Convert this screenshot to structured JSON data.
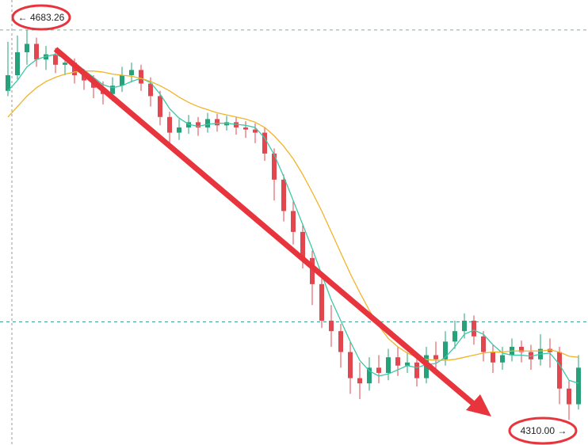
{
  "chart_data": {
    "type": "candlestick",
    "ylim": [
      4286,
      4712
    ],
    "open": [
      4625,
      4640,
      4662,
      4670,
      4655,
      4660,
      4650,
      4652,
      4640,
      4635,
      4628,
      4622,
      4630,
      4640,
      4645,
      4632,
      4620,
      4600,
      4585,
      4590,
      4595,
      4590,
      4598,
      4592,
      4595,
      4590,
      4588,
      4585,
      4565,
      4540,
      4510,
      4490,
      4465,
      4440,
      4405,
      4395,
      4375,
      4350,
      4345,
      4360,
      4355,
      4370,
      4362,
      4365,
      4350,
      4372,
      4368,
      4385,
      4395,
      4405,
      4390,
      4375,
      4365,
      4372,
      4380,
      4375,
      4368,
      4378,
      4375,
      4340,
      4325
    ],
    "high": [
      4672,
      4678,
      4683.26,
      4676,
      4668,
      4666,
      4660,
      4656,
      4646,
      4640,
      4634,
      4638,
      4648,
      4652,
      4650,
      4638,
      4625,
      4605,
      4598,
      4602,
      4600,
      4604,
      4603,
      4601,
      4600,
      4596,
      4594,
      4590,
      4570,
      4545,
      4520,
      4498,
      4472,
      4448,
      4420,
      4402,
      4385,
      4365,
      4370,
      4372,
      4378,
      4380,
      4375,
      4370,
      4380,
      4385,
      4395,
      4405,
      4412,
      4410,
      4395,
      4382,
      4380,
      4388,
      4386,
      4382,
      4392,
      4388,
      4380,
      4348,
      4372
    ],
    "low": [
      4620,
      4636,
      4650,
      4648,
      4645,
      4642,
      4640,
      4632,
      4626,
      4618,
      4612,
      4615,
      4624,
      4633,
      4625,
      4610,
      4592,
      4575,
      4578,
      4584,
      4582,
      4585,
      4586,
      4587,
      4583,
      4580,
      4575,
      4558,
      4520,
      4500,
      4478,
      4455,
      4420,
      4398,
      4380,
      4360,
      4335,
      4330,
      4338,
      4345,
      4348,
      4352,
      4355,
      4342,
      4345,
      4358,
      4362,
      4378,
      4388,
      4382,
      4366,
      4355,
      4358,
      4366,
      4365,
      4358,
      4362,
      4360,
      4325,
      4310.0,
      4320
    ],
    "close": [
      4640,
      4662,
      4670,
      4655,
      4660,
      4650,
      4652,
      4640,
      4635,
      4628,
      4622,
      4630,
      4640,
      4645,
      4632,
      4620,
      4600,
      4585,
      4590,
      4595,
      4590,
      4598,
      4592,
      4595,
      4590,
      4588,
      4585,
      4565,
      4540,
      4510,
      4490,
      4465,
      4440,
      4405,
      4395,
      4375,
      4350,
      4345,
      4360,
      4355,
      4370,
      4362,
      4365,
      4350,
      4372,
      4368,
      4385,
      4395,
      4405,
      4390,
      4375,
      4365,
      4372,
      4380,
      4375,
      4368,
      4378,
      4375,
      4340,
      4325,
      4360
    ],
    "up_color": "#26a17a",
    "down_color": "#e2474f",
    "overlays": [
      {
        "color": "#3cc8a8",
        "values": [
          4625,
          4635,
          4648,
          4655,
          4658,
          4660,
          4656,
          4652,
          4645,
          4638,
          4631,
          4628,
          4630,
          4634,
          4637,
          4633,
          4622,
          4608,
          4599,
          4593,
          4591,
          4593,
          4594,
          4594,
          4593,
          4592,
          4590,
          4580,
          4564,
          4543,
          4520,
          4497,
          4474,
          4449,
          4425,
          4405,
          4385,
          4367,
          4357,
          4352,
          4354,
          4358,
          4362,
          4360,
          4363,
          4364,
          4370,
          4380,
          4392,
          4396,
          4392,
          4382,
          4374,
          4372,
          4372,
          4371,
          4373,
          4374,
          4363,
          4348,
          4345
        ]
      },
      {
        "color": "#f0b429",
        "values": [
          4600,
          4610,
          4620,
          4628,
          4634,
          4638,
          4641,
          4643,
          4644,
          4644,
          4643,
          4641,
          4640,
          4639,
          4637,
          4634,
          4630,
          4625,
          4619,
          4614,
          4610,
          4607,
          4604,
          4602,
          4600,
          4598,
          4595,
          4590,
          4582,
          4572,
          4560,
          4545,
          4528,
          4510,
          4490,
          4470,
          4450,
          4432,
          4415,
          4400,
          4388,
          4380,
          4374,
          4370,
          4368,
          4367,
          4367,
          4368,
          4370,
          4372,
          4374,
          4375,
          4375,
          4376,
          4376,
          4376,
          4376,
          4377,
          4375,
          4371,
          4370
        ]
      }
    ],
    "price_line": 4404,
    "high_label": {
      "value": 4683.26,
      "label": "← 4683.26"
    },
    "low_label": {
      "value": 4310,
      "label": "4310.00 →"
    }
  }
}
